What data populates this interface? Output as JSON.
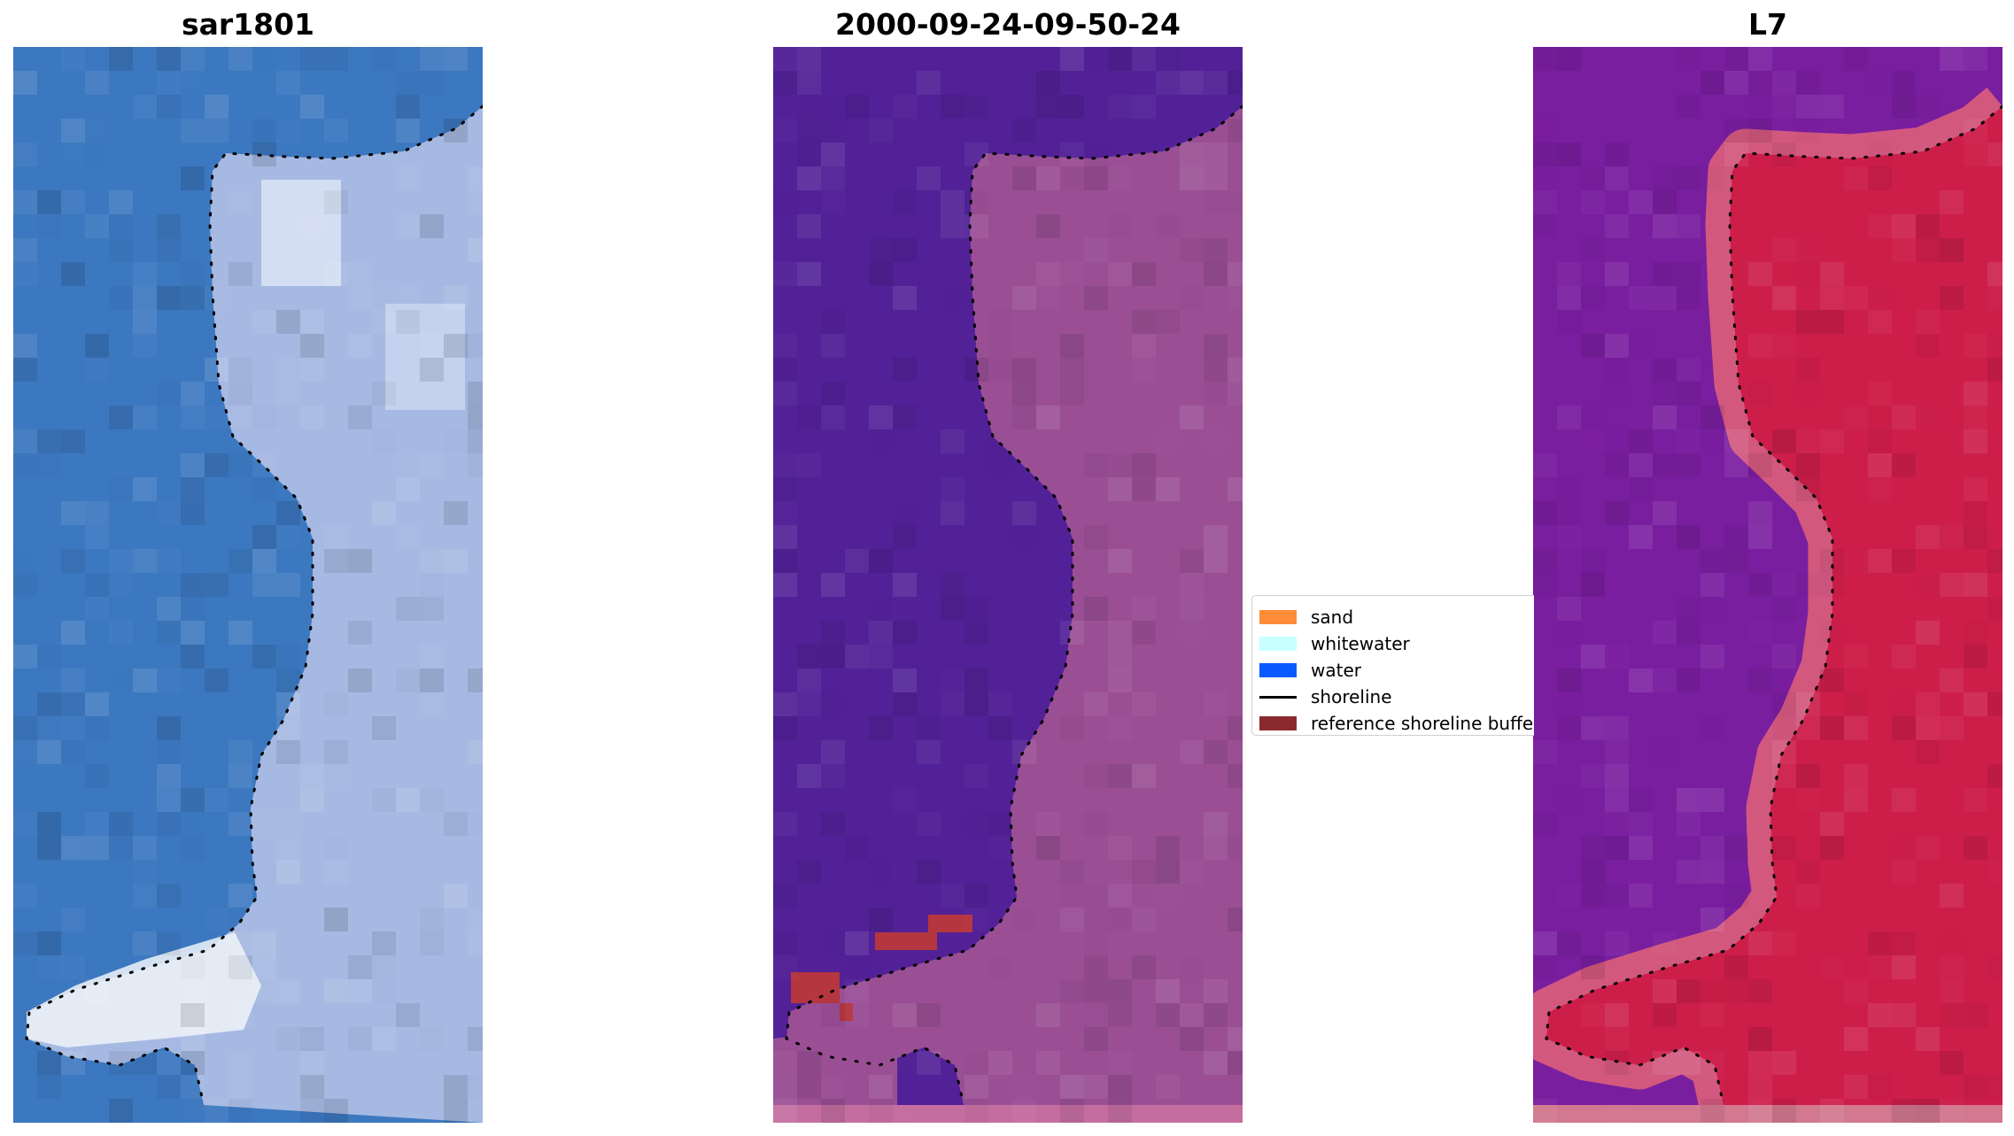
{
  "panels": [
    {
      "title": "sar1801",
      "style": "rgb-true-color"
    },
    {
      "title": "2000-09-24-09-50-24",
      "style": "classified"
    },
    {
      "title": "L7",
      "style": "water-index"
    }
  ],
  "legend": {
    "items": [
      {
        "label": "sand",
        "color": "#ff8c38",
        "kind": "patch"
      },
      {
        "label": "whitewater",
        "color": "#c8ffff",
        "kind": "patch"
      },
      {
        "label": "water",
        "color": "#0a5aff",
        "kind": "patch"
      },
      {
        "label": "shoreline",
        "color": "#000000",
        "kind": "line"
      },
      {
        "label": "reference shoreline buffer",
        "color": "#8b2a2e",
        "kind": "patch"
      }
    ]
  },
  "colors": {
    "panel1_sea": "#3c78c0",
    "panel1_land": "#a6b9e2",
    "panel1_surf": "#eef3f8",
    "panel2_water": "#522197",
    "panel2_land": "#9a4f95",
    "panel2_buffer": "#b5363f",
    "panel3_water": "#7a1ea0",
    "panel3_land": "#cd1e4a",
    "panel3_edge": "#d2587e"
  }
}
